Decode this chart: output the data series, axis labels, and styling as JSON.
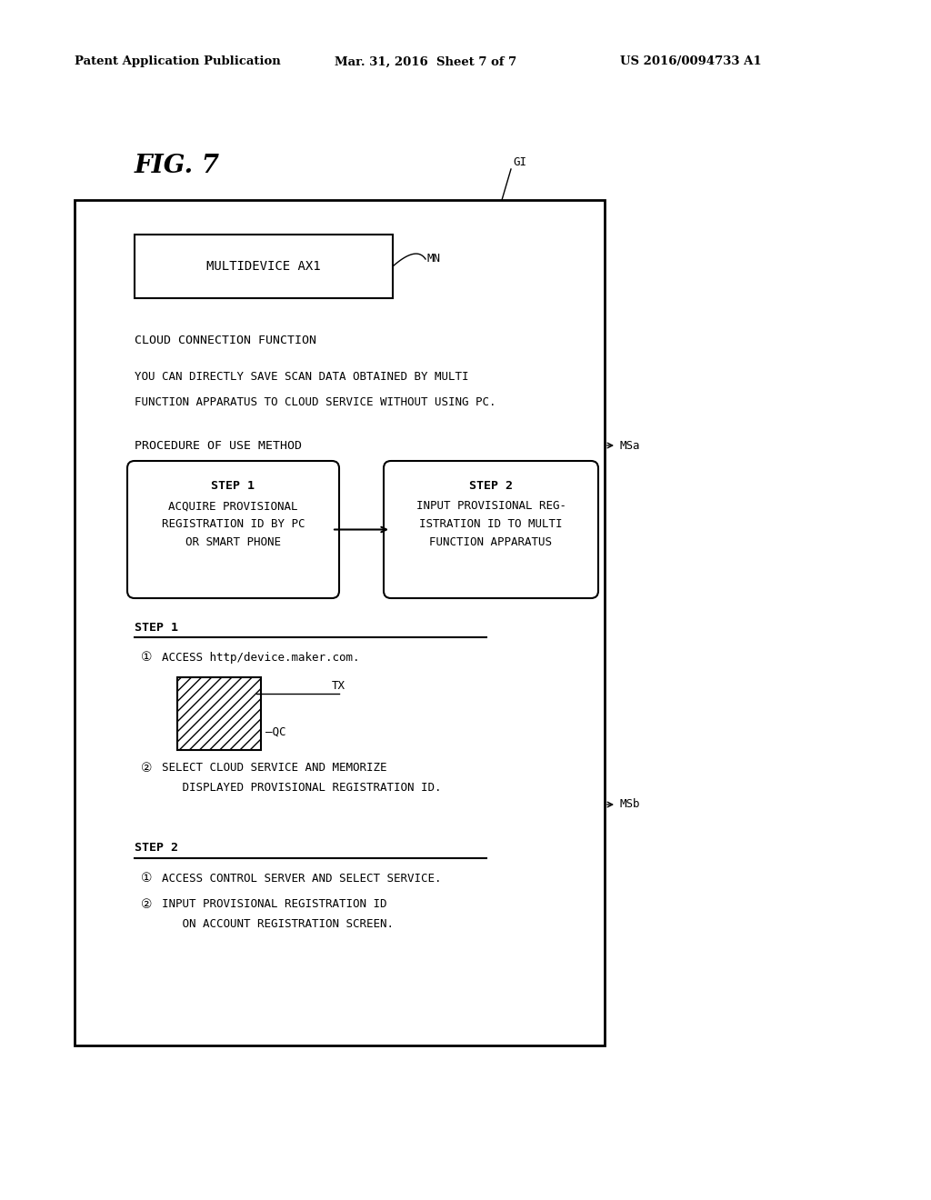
{
  "bg_color": "#ffffff",
  "header_left": "Patent Application Publication",
  "header_mid": "Mar. 31, 2016  Sheet 7 of 7",
  "header_right": "US 2016/0094733 A1",
  "fig_label": "FIG. 7",
  "GI_label": "GI",
  "MN_label": "MN",
  "MSa_label": "MSa",
  "MSb_label": "MSb",
  "QC_label": "QC",
  "TX_label": "TX",
  "multidevice_text": "MULTIDEVICE AX1",
  "cloud_connection_title": "CLOUD CONNECTION FUNCTION",
  "cloud_connection_desc1": "YOU CAN DIRECTLY SAVE SCAN DATA OBTAINED BY MULTI",
  "cloud_connection_desc2": "FUNCTION APPARATUS TO CLOUD SERVICE WITHOUT USING PC.",
  "procedure_title": "PROCEDURE OF USE METHOD",
  "step1_box_line1": "STEP 1",
  "step1_box_line2": "ACQUIRE PROVISIONAL",
  "step1_box_line3": "REGISTRATION ID BY PC",
  "step1_box_line4": "OR SMART PHONE",
  "step2_box_line1": "STEP 2",
  "step2_box_line2": "INPUT PROVISIONAL REG-",
  "step2_box_line3": "ISTRATION ID TO MULTI",
  "step2_box_line4": "FUNCTION APPARATUS",
  "step1_section_title": "STEP 1",
  "step1_item1_a": "①",
  "step1_item1_b": "ACCESS http/device.maker.com.",
  "step1_item2_a": "②",
  "step1_item2_b": "SELECT CLOUD SERVICE AND MEMORIZE",
  "step1_item2_c": "   DISPLAYED PROVISIONAL REGISTRATION ID.",
  "step2_section_title": "STEP 2",
  "step2_item1_a": "①",
  "step2_item1_b": "ACCESS CONTROL SERVER AND SELECT SERVICE.",
  "step2_item2_a": "②",
  "step2_item2_b": "INPUT PROVISIONAL REGISTRATION ID",
  "step2_item2_c": "   ON ACCOUNT REGISTRATION SCREEN."
}
